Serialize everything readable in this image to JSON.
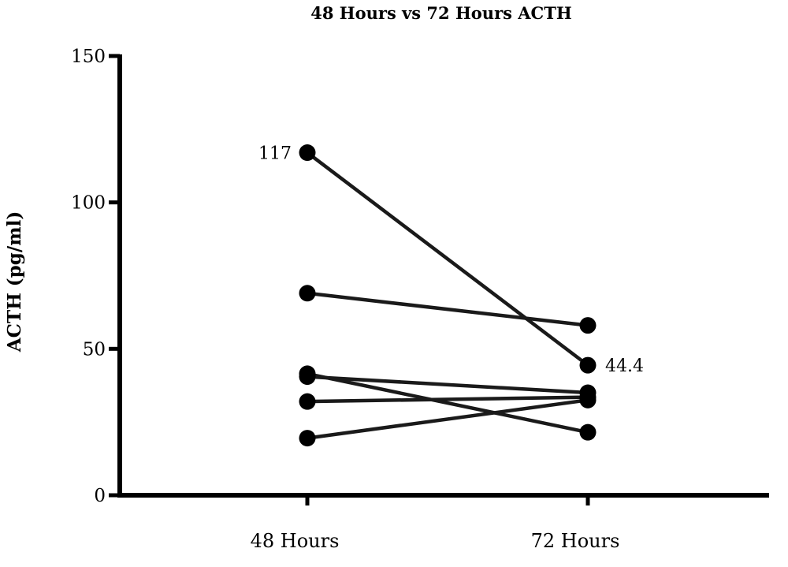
{
  "chart_data": {
    "type": "line",
    "title": "48 Hours vs 72 Hours ACTH",
    "xlabel": "",
    "ylabel": "ACTH (pg/ml)",
    "categories": [
      "48 Hours",
      "72 Hours"
    ],
    "ylim": [
      0,
      150
    ],
    "yticks": [
      0,
      50,
      100,
      150
    ],
    "grid": false,
    "series": [
      {
        "values": [
          117,
          44.4
        ]
      },
      {
        "values": [
          69,
          58
        ]
      },
      {
        "values": [
          41.5,
          21.5
        ]
      },
      {
        "values": [
          40.5,
          35
        ]
      },
      {
        "values": [
          32,
          33.5
        ]
      },
      {
        "values": [
          19.5,
          32.5
        ]
      }
    ],
    "annotations": [
      {
        "text": "117",
        "category": "48 Hours",
        "value": 117,
        "side": "left"
      },
      {
        "text": "44.4",
        "category": "72 Hours",
        "value": 44.4,
        "side": "right"
      }
    ],
    "colors": {
      "line": "#1a1a1a",
      "marker": "#000000",
      "axis": "#000000"
    }
  }
}
